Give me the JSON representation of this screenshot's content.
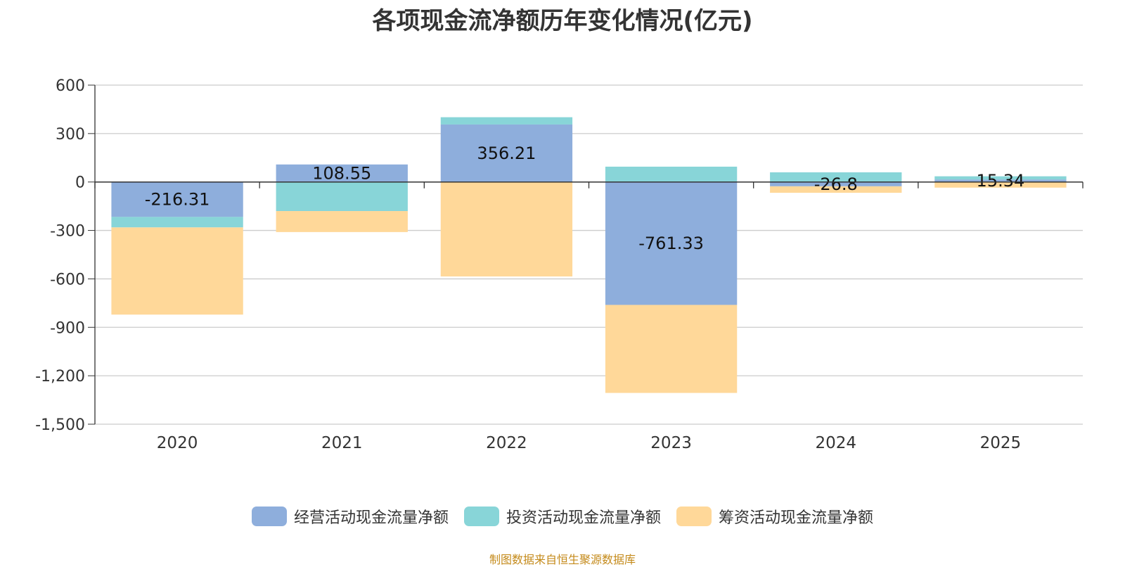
{
  "chart_data": {
    "type": "bar",
    "stacked": true,
    "title": "各项现金流净额历年变化情况(亿元)",
    "categories": [
      "2020",
      "2021",
      "2022",
      "2023",
      "2024",
      "2025"
    ],
    "series": [
      {
        "name": "经营活动现金流量净额",
        "color": "#8eaedc",
        "values": [
          -216.31,
          108.55,
          356.21,
          -761.33,
          -26.8,
          15.34
        ],
        "labels": [
          "-216.31",
          "108.55",
          "356.21",
          "-761.33",
          "-26.8",
          "15.34"
        ]
      },
      {
        "name": "投资活动现金流量净额",
        "color": "#88d5d8",
        "values": [
          -65,
          -180,
          45,
          95,
          60,
          20
        ]
      },
      {
        "name": "筹资活动现金流量净额",
        "color": "#ffd899",
        "values": [
          -540,
          -130,
          -585,
          -545,
          -40,
          -35
        ]
      }
    ],
    "ylim": [
      -1500,
      600
    ],
    "yticks": [
      600,
      300,
      0,
      -300,
      -600,
      -900,
      -1200,
      -1500
    ],
    "ytick_labels": [
      "600",
      "300",
      "0",
      "-300",
      "-600",
      "-900",
      "-1,200",
      "-1,500"
    ],
    "xlabel": "",
    "ylabel": "",
    "grid": true,
    "legend_position": "bottom"
  },
  "source_note": "制图数据来自恒生聚源数据库"
}
